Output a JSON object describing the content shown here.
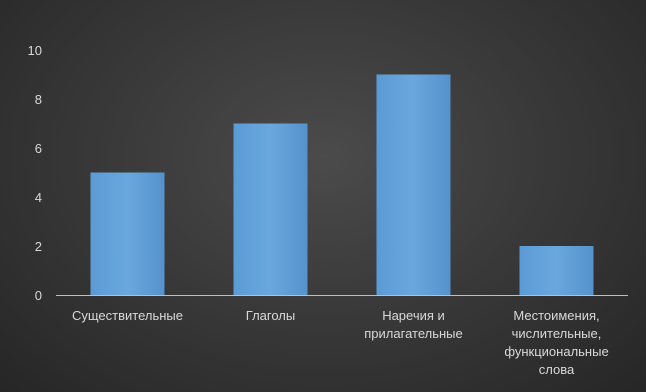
{
  "chart_data": {
    "type": "bar",
    "title": "",
    "xlabel": "",
    "ylabel": "",
    "ylim": [
      0,
      10
    ],
    "yticks": [
      0,
      2,
      4,
      6,
      8,
      10
    ],
    "grid": false,
    "legend": "none",
    "categories": [
      [
        "Существительные"
      ],
      [
        "Глаголы"
      ],
      [
        "Наречия и",
        "прилагательные"
      ],
      [
        "Местоимения,",
        "числительные,",
        "функциональные",
        "слова"
      ]
    ],
    "values": [
      5,
      7,
      9,
      2
    ],
    "colors": {
      "bar": "#5b9bd5",
      "bar_highlight": "#6fa8dc",
      "text": "#d9d9d9",
      "axis": "#bfbfbf"
    }
  }
}
